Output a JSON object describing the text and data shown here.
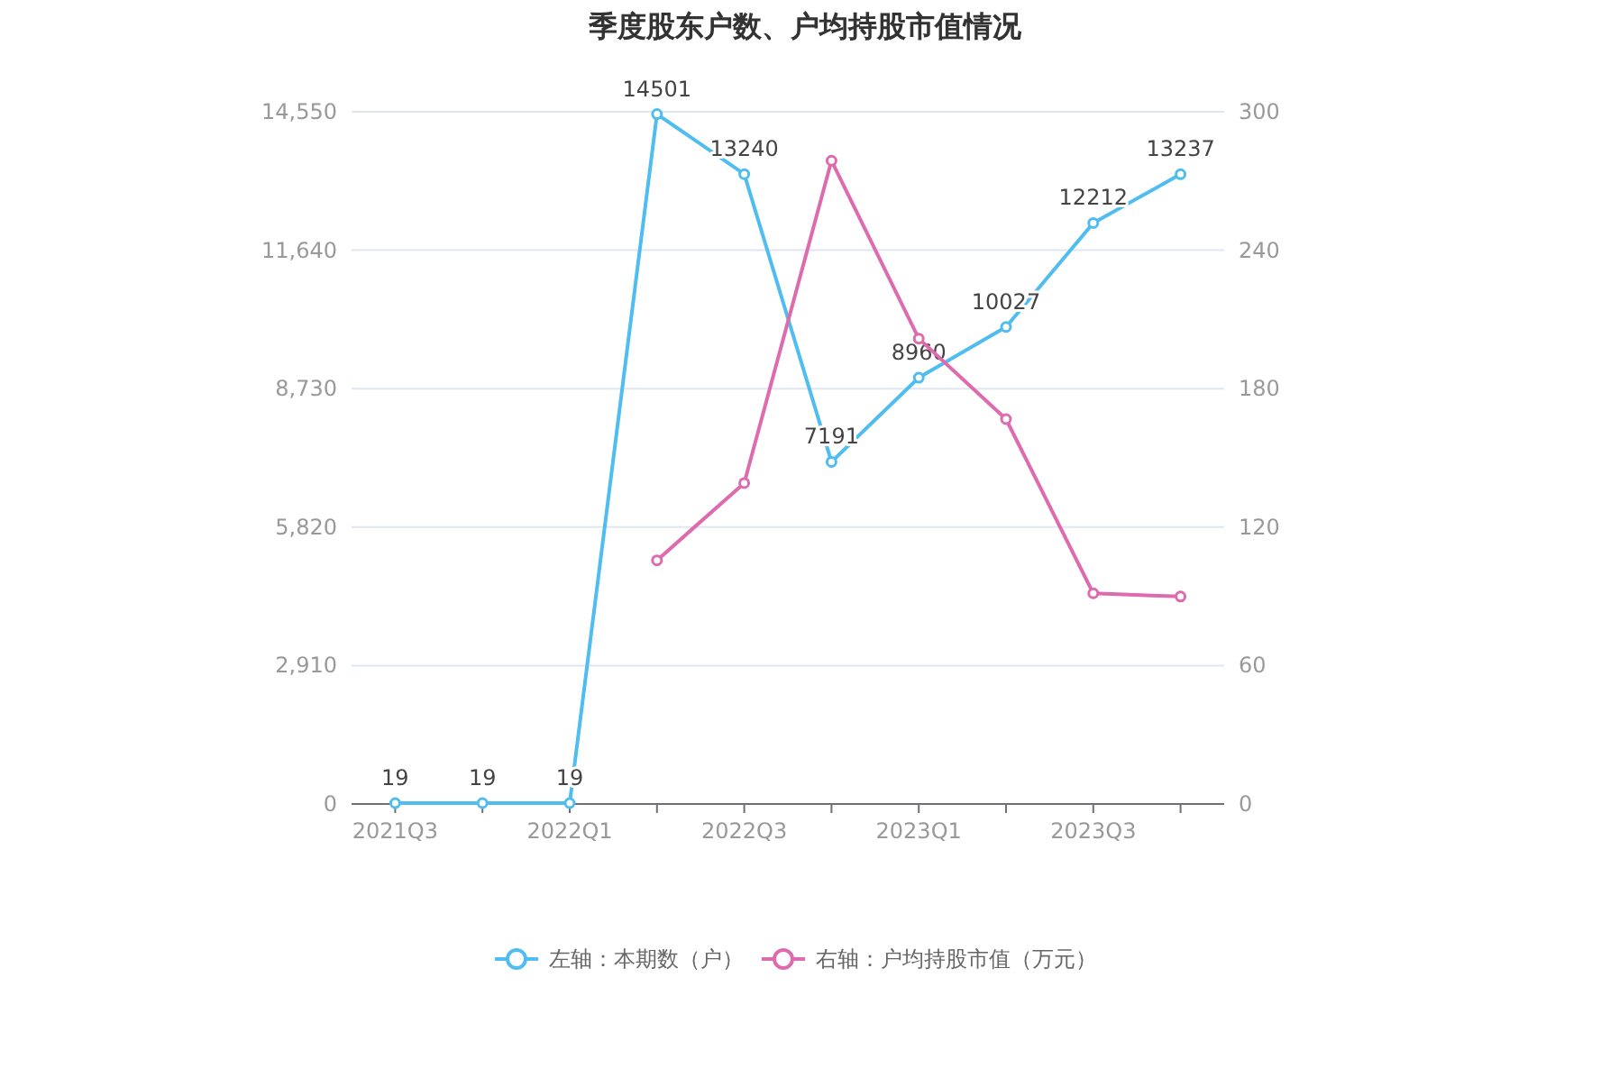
{
  "chart_data": {
    "type": "line",
    "title": "季度股东户数、户均持股市值情况",
    "categories": [
      "2021Q3",
      null,
      "2022Q1",
      null,
      "2022Q3",
      null,
      "2023Q1",
      null,
      "2023Q3",
      null
    ],
    "series": [
      {
        "name": "左轴：本期数（户）",
        "color": "#4fbdf0",
        "values": [
          19,
          19,
          19,
          14501,
          13240,
          7191,
          8960,
          10027,
          12212,
          13237
        ],
        "value_labels": [
          "19",
          "19",
          "19",
          "14501",
          "13240",
          "7191",
          "8960",
          "10027",
          "12212",
          "13237"
        ]
      },
      {
        "name": "右轴：户均持股市值（万元）",
        "color": "#dd6bae",
        "axis": "y2",
        "values": [
          null,
          null,
          null,
          105.6,
          139.1,
          278.8,
          201.7,
          166.8,
          91.3,
          89.9
        ]
      }
    ],
    "ylim": [
      0,
      14550
    ],
    "yticks": [
      0,
      {
        "value": 2910,
        "label": "2,910"
      },
      {
        "value": 5820,
        "label": "5,820"
      },
      {
        "value": 8730,
        "label": "8,730"
      },
      {
        "value": 11640,
        "label": "11,640"
      },
      {
        "value": 14550,
        "label": "14,550"
      }
    ],
    "y2lim": [
      0,
      300
    ],
    "y2ticks": [
      0,
      60,
      120,
      180,
      240,
      300
    ],
    "grid": "y",
    "legend": "bottom",
    "marker": "circle",
    "line_style": "solid"
  }
}
